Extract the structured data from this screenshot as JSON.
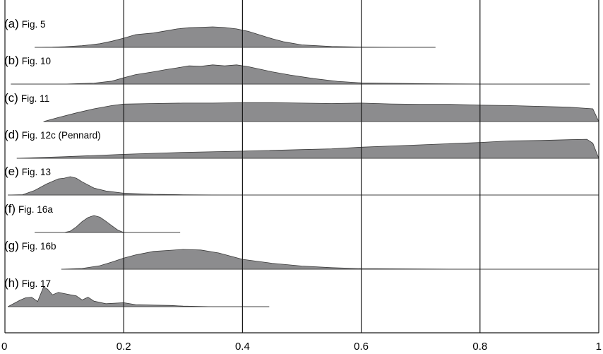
{
  "chart_data": {
    "type": "area",
    "title": "",
    "xlabel": "",
    "ylabel": "",
    "xlim": [
      0,
      1
    ],
    "x_ticks": [
      "0",
      "0.2",
      "0.4",
      "0.6",
      "0.8",
      "1"
    ],
    "grid": "vertical lines at 0.2, 0.4, 0.6, 0.8",
    "fill_color": "#8c8c8e",
    "stroke_color": "#3a3a3a",
    "series": [
      {
        "name": "Fig. 5",
        "letter": "(a)",
        "range": [
          0.05,
          0.725
        ],
        "x": [
          0.05,
          0.08,
          0.1,
          0.13,
          0.16,
          0.18,
          0.2,
          0.22,
          0.25,
          0.27,
          0.29,
          0.31,
          0.33,
          0.35,
          0.37,
          0.39,
          0.41,
          0.43,
          0.45,
          0.47,
          0.5,
          0.55,
          0.6,
          0.65,
          0.7,
          0.725
        ],
        "y": [
          0.0,
          0.01,
          0.03,
          0.08,
          0.18,
          0.3,
          0.45,
          0.62,
          0.7,
          0.8,
          0.9,
          0.96,
          0.98,
          1.0,
          0.97,
          0.9,
          0.78,
          0.6,
          0.42,
          0.27,
          0.12,
          0.04,
          0.015,
          0.005,
          0.0,
          0.0
        ]
      },
      {
        "name": "Fig. 10",
        "letter": "(b)",
        "range": [
          0.01,
          0.985
        ],
        "x": [
          0.01,
          0.1,
          0.15,
          0.18,
          0.2,
          0.22,
          0.25,
          0.27,
          0.29,
          0.31,
          0.33,
          0.35,
          0.37,
          0.39,
          0.41,
          0.43,
          0.45,
          0.48,
          0.52,
          0.56,
          0.6,
          0.7,
          0.8,
          0.9,
          0.985
        ],
        "y": [
          0.0,
          0.0,
          0.05,
          0.15,
          0.32,
          0.48,
          0.62,
          0.73,
          0.82,
          0.92,
          0.9,
          0.97,
          0.92,
          0.97,
          0.88,
          0.75,
          0.62,
          0.46,
          0.28,
          0.14,
          0.06,
          0.02,
          0.005,
          0.0,
          0.0
        ]
      },
      {
        "name": "Fig. 11",
        "letter": "(c)",
        "range": [
          0.065,
          1.0
        ],
        "x": [
          0.065,
          0.09,
          0.12,
          0.15,
          0.18,
          0.2,
          0.25,
          0.3,
          0.35,
          0.4,
          0.45,
          0.5,
          0.55,
          0.6,
          0.65,
          0.7,
          0.75,
          0.8,
          0.85,
          0.9,
          0.95,
          0.99,
          1.0
        ],
        "y": [
          0.0,
          0.2,
          0.42,
          0.62,
          0.78,
          0.85,
          0.88,
          0.9,
          0.9,
          0.92,
          0.92,
          0.9,
          0.88,
          0.9,
          0.86,
          0.84,
          0.84,
          0.8,
          0.78,
          0.74,
          0.7,
          0.62,
          0.0
        ]
      },
      {
        "name": "Fig. 12c (Pennard)",
        "letter": "(d)",
        "range": [
          0.02,
          1.0
        ],
        "x": [
          0.02,
          0.1,
          0.2,
          0.3,
          0.4,
          0.5,
          0.55,
          0.6,
          0.65,
          0.7,
          0.75,
          0.8,
          0.85,
          0.9,
          0.95,
          0.98,
          0.99,
          1.0
        ],
        "y": [
          0.0,
          0.08,
          0.2,
          0.3,
          0.36,
          0.44,
          0.48,
          0.56,
          0.62,
          0.68,
          0.74,
          0.8,
          0.88,
          0.9,
          0.94,
          0.96,
          0.76,
          0.0
        ]
      },
      {
        "name": "Fig. 13",
        "letter": "(e)",
        "range": [
          0.005,
          1.0
        ],
        "x": [
          0.005,
          0.03,
          0.05,
          0.07,
          0.09,
          0.1,
          0.11,
          0.12,
          0.13,
          0.15,
          0.17,
          0.2,
          0.25,
          0.3,
          0.35,
          0.4,
          1.0
        ],
        "y": [
          0.0,
          0.02,
          0.25,
          0.6,
          0.88,
          0.92,
          1.0,
          0.92,
          0.72,
          0.38,
          0.22,
          0.1,
          0.04,
          0.015,
          0.005,
          0.0,
          0.0
        ]
      },
      {
        "name": "Fig. 16a",
        "letter": "(f)",
        "range": [
          0.05,
          0.295
        ],
        "x": [
          0.05,
          0.1,
          0.11,
          0.12,
          0.13,
          0.14,
          0.15,
          0.16,
          0.17,
          0.18,
          0.19,
          0.2,
          0.295
        ],
        "y": [
          0.0,
          0.0,
          0.08,
          0.32,
          0.64,
          0.88,
          1.0,
          0.9,
          0.66,
          0.4,
          0.14,
          0.0,
          0.0
        ]
      },
      {
        "name": "Fig. 16b",
        "letter": "(g)",
        "range": [
          0.095,
          1.0
        ],
        "x": [
          0.095,
          0.13,
          0.16,
          0.18,
          0.2,
          0.22,
          0.25,
          0.28,
          0.3,
          0.33,
          0.36,
          0.38,
          0.4,
          0.45,
          0.5,
          0.55,
          0.6,
          0.7,
          0.8,
          1.0
        ],
        "y": [
          0.0,
          0.04,
          0.18,
          0.36,
          0.56,
          0.72,
          0.9,
          0.96,
          1.0,
          0.97,
          0.82,
          0.66,
          0.5,
          0.3,
          0.16,
          0.08,
          0.03,
          0.01,
          0.0,
          0.0
        ]
      },
      {
        "name": "Fig. 17",
        "letter": "(h)",
        "range": [
          0.005,
          0.445
        ],
        "x": [
          0.005,
          0.025,
          0.035,
          0.045,
          0.055,
          0.065,
          0.072,
          0.08,
          0.09,
          0.1,
          0.11,
          0.12,
          0.13,
          0.14,
          0.15,
          0.17,
          0.2,
          0.22,
          0.25,
          0.28,
          0.3,
          0.35,
          0.445
        ],
        "y": [
          0.0,
          0.32,
          0.45,
          0.48,
          0.26,
          1.0,
          0.88,
          0.6,
          0.72,
          0.66,
          0.6,
          0.55,
          0.34,
          0.48,
          0.28,
          0.15,
          0.2,
          0.1,
          0.08,
          0.06,
          0.03,
          0.0,
          0.0
        ]
      }
    ]
  }
}
